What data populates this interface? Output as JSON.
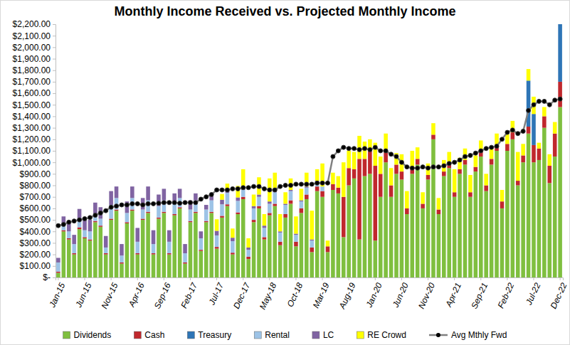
{
  "chart_data": {
    "type": "bar",
    "stacked": true,
    "grid": false,
    "legend": "bottom",
    "title": "Monthly Income Received vs. Projected Monthly Income",
    "categories": [
      "Jan-15",
      null,
      null,
      null,
      null,
      "Jun-15",
      null,
      null,
      null,
      null,
      "Nov-15",
      null,
      null,
      null,
      null,
      "Apr-16",
      null,
      null,
      null,
      null,
      "Sep-16",
      null,
      null,
      null,
      null,
      "Feb-17",
      null,
      null,
      null,
      null,
      "Jul-17",
      null,
      null,
      null,
      null,
      "Dec-17",
      null,
      null,
      null,
      null,
      "May-18",
      null,
      null,
      null,
      null,
      "Oct-18",
      null,
      null,
      null,
      null,
      "Mar-19",
      null,
      null,
      null,
      null,
      "Aug-19",
      null,
      null,
      null,
      null,
      "Jan-20",
      null,
      null,
      null,
      null,
      "Jun-20",
      null,
      null,
      null,
      null,
      "Nov-20",
      null,
      null,
      null,
      null,
      "Apr-21",
      null,
      null,
      null,
      null,
      "Sep-21",
      null,
      null,
      null,
      null,
      "Feb-22",
      null,
      null,
      null,
      null,
      "Jul-22",
      null,
      null,
      null,
      null,
      "Dec-22"
    ],
    "ylim": [
      0,
      2200
    ],
    "yticks": [
      {
        "value": 0,
        "label": "$-"
      },
      {
        "value": 100,
        "label": "$100.00"
      },
      {
        "value": 200,
        "label": "$200.00"
      },
      {
        "value": 300,
        "label": "$300.00"
      },
      {
        "value": 400,
        "label": "$400.00"
      },
      {
        "value": 500,
        "label": "$500.00"
      },
      {
        "value": 600,
        "label": "$600.00"
      },
      {
        "value": 700,
        "label": "$700.00"
      },
      {
        "value": 800,
        "label": "$800.00"
      },
      {
        "value": 900,
        "label": "$900.00"
      },
      {
        "value": 1000,
        "label": "$1,000.00"
      },
      {
        "value": 1100,
        "label": "$1,100.00"
      },
      {
        "value": 1200,
        "label": "$1,200.00"
      },
      {
        "value": 1300,
        "label": "$1,300.00"
      },
      {
        "value": 1400,
        "label": "$1,400.00"
      },
      {
        "value": 1500,
        "label": "$1,500.00"
      },
      {
        "value": 1600,
        "label": "$1,600.00"
      },
      {
        "value": 1700,
        "label": "$1,700.00"
      },
      {
        "value": 1800,
        "label": "$1,800.00"
      },
      {
        "value": 1900,
        "label": "$1,900.00"
      },
      {
        "value": 2000,
        "label": "$2,000.00"
      },
      {
        "value": 2100,
        "label": "$2,100.00"
      },
      {
        "value": 2200,
        "label": "$2,200.00"
      }
    ],
    "series": [
      {
        "name": "Dividends",
        "color": "#7fbf3f",
        "type": "bar",
        "values": [
          40,
          400,
          330,
          200,
          420,
          340,
          320,
          480,
          440,
          200,
          500,
          580,
          120,
          470,
          580,
          200,
          500,
          560,
          200,
          510,
          560,
          200,
          540,
          600,
          120,
          480,
          560,
          230,
          480,
          560,
          250,
          520,
          620,
          200,
          550,
          680,
          160,
          480,
          600,
          330,
          540,
          620,
          280,
          520,
          640,
          270,
          560,
          680,
          220,
          750,
          700,
          220,
          760,
          730,
          350,
          800,
          860,
          330,
          880,
          900,
          320,
          700,
          1000,
          700,
          900,
          850,
          550,
          900,
          980,
          600,
          850,
          1200,
          550,
          880,
          950,
          700,
          900,
          980,
          700,
          920,
          1050,
          750,
          980,
          1100,
          600,
          1100,
          1200,
          800,
          1000,
          1250,
          1000,
          1020,
          1300,
          820,
          1050,
          1480
        ]
      },
      {
        "name": "Cash",
        "color": "#c0282d",
        "type": "bar",
        "values": [
          10,
          10,
          10,
          10,
          15,
          10,
          10,
          10,
          10,
          10,
          10,
          10,
          10,
          10,
          10,
          10,
          10,
          10,
          10,
          10,
          10,
          10,
          10,
          10,
          10,
          10,
          10,
          10,
          10,
          10,
          15,
          15,
          15,
          15,
          15,
          20,
          20,
          20,
          20,
          20,
          20,
          20,
          30,
          30,
          30,
          40,
          40,
          40,
          40,
          40,
          50,
          50,
          50,
          50,
          350,
          150,
          80,
          700,
          150,
          200,
          650,
          200,
          100,
          100,
          80,
          70,
          50,
          50,
          50,
          40,
          40,
          40,
          40,
          40,
          40,
          40,
          40,
          40,
          40,
          40,
          40,
          50,
          50,
          50,
          60,
          60,
          60,
          40,
          60,
          60,
          150,
          100,
          100,
          150,
          200,
          220
        ]
      },
      {
        "name": "Treasury",
        "color": "#2e75b6",
        "type": "bar",
        "values": [
          0,
          0,
          0,
          0,
          0,
          0,
          0,
          0,
          0,
          0,
          0,
          0,
          0,
          0,
          0,
          0,
          0,
          0,
          0,
          0,
          0,
          0,
          0,
          0,
          0,
          0,
          0,
          0,
          0,
          0,
          0,
          0,
          0,
          0,
          0,
          0,
          0,
          0,
          0,
          0,
          0,
          0,
          0,
          0,
          0,
          0,
          0,
          0,
          0,
          0,
          0,
          0,
          0,
          0,
          0,
          0,
          0,
          0,
          0,
          0,
          0,
          0,
          0,
          0,
          0,
          0,
          0,
          0,
          0,
          0,
          0,
          0,
          0,
          0,
          0,
          0,
          0,
          0,
          0,
          0,
          0,
          0,
          0,
          0,
          0,
          0,
          0,
          0,
          0,
          400,
          270,
          0,
          0,
          0,
          0,
          500
        ]
      },
      {
        "name": "Rental",
        "color": "#9dc3e6",
        "type": "bar",
        "values": [
          80,
          60,
          60,
          80,
          80,
          60,
          70,
          60,
          60,
          50,
          120,
          100,
          60,
          80,
          100,
          100,
          80,
          100,
          80,
          100,
          100,
          100,
          100,
          80,
          80,
          100,
          100,
          100,
          100,
          100,
          100,
          100,
          100,
          100,
          100,
          60,
          60,
          100,
          80,
          80,
          80,
          100,
          80,
          80,
          80,
          60,
          60,
          60,
          60,
          40,
          40,
          0,
          0,
          0,
          0,
          0,
          0,
          0,
          0,
          0,
          0,
          0,
          0,
          0,
          0,
          0,
          0,
          0,
          0,
          0,
          0,
          0,
          0,
          0,
          0,
          0,
          0,
          0,
          0,
          0,
          0,
          0,
          0,
          0,
          0,
          0,
          0,
          0,
          0,
          0,
          0,
          0,
          0,
          0,
          0,
          0
        ]
      },
      {
        "name": "LC",
        "color": "#8064a2",
        "type": "bar",
        "values": [
          40,
          60,
          70,
          80,
          80,
          100,
          100,
          100,
          100,
          100,
          120,
          100,
          100,
          100,
          100,
          120,
          100,
          120,
          120,
          100,
          100,
          100,
          80,
          80,
          80,
          80,
          60,
          60,
          40,
          40,
          40,
          40,
          30,
          30,
          30,
          30,
          20,
          20,
          20,
          20,
          20,
          20,
          10,
          10,
          10,
          10,
          10,
          10,
          10,
          10,
          0,
          0,
          0,
          0,
          0,
          0,
          0,
          0,
          0,
          0,
          0,
          0,
          0,
          0,
          0,
          0,
          0,
          0,
          0,
          0,
          0,
          0,
          0,
          0,
          0,
          0,
          0,
          0,
          0,
          0,
          0,
          0,
          0,
          0,
          0,
          0,
          0,
          0,
          0,
          0,
          0,
          0,
          0,
          0,
          0,
          0
        ]
      },
      {
        "name": "RE Crowd",
        "color": "#ffff00",
        "type": "bar",
        "values": [
          0,
          0,
          0,
          0,
          0,
          0,
          0,
          0,
          0,
          0,
          0,
          0,
          0,
          0,
          0,
          0,
          0,
          0,
          0,
          0,
          0,
          0,
          0,
          0,
          0,
          0,
          0,
          0,
          0,
          0,
          100,
          50,
          50,
          80,
          100,
          150,
          80,
          100,
          150,
          100,
          200,
          150,
          150,
          100,
          100,
          150,
          100,
          120,
          250,
          100,
          200,
          50,
          100,
          100,
          300,
          150,
          150,
          200,
          150,
          100,
          200,
          150,
          150,
          150,
          100,
          150,
          150,
          150,
          100,
          100,
          100,
          100,
          100,
          100,
          100,
          200,
          100,
          100,
          150,
          100,
          100,
          100,
          100,
          100,
          100,
          100,
          100,
          250,
          100,
          100,
          150,
          50,
          80,
          100,
          100,
          0
        ]
      },
      {
        "name": "Avg Mthly Fwd",
        "color": "#808080",
        "type": "line",
        "marker": "circle",
        "values": [
          450,
          460,
          480,
          490,
          500,
          510,
          520,
          540,
          560,
          580,
          610,
          620,
          630,
          630,
          640,
          640,
          630,
          640,
          640,
          645,
          650,
          650,
          650,
          645,
          650,
          650,
          650,
          680,
          700,
          720,
          760,
          760,
          760,
          770,
          770,
          780,
          780,
          790,
          790,
          770,
          760,
          760,
          790,
          800,
          800,
          810,
          810,
          810,
          810,
          820,
          820,
          820,
          1050,
          1100,
          1130,
          1120,
          1120,
          1110,
          1120,
          1110,
          1130,
          1100,
          1100,
          1070,
          1050,
          1000,
          960,
          950,
          950,
          960,
          950,
          960,
          960,
          970,
          990,
          1000,
          1020,
          1050,
          1060,
          1080,
          1100,
          1120,
          1130,
          1140,
          1200,
          1260,
          1280,
          1250,
          1270,
          1450,
          1500,
          1530,
          1530,
          1500,
          1540,
          1550
        ]
      }
    ]
  }
}
